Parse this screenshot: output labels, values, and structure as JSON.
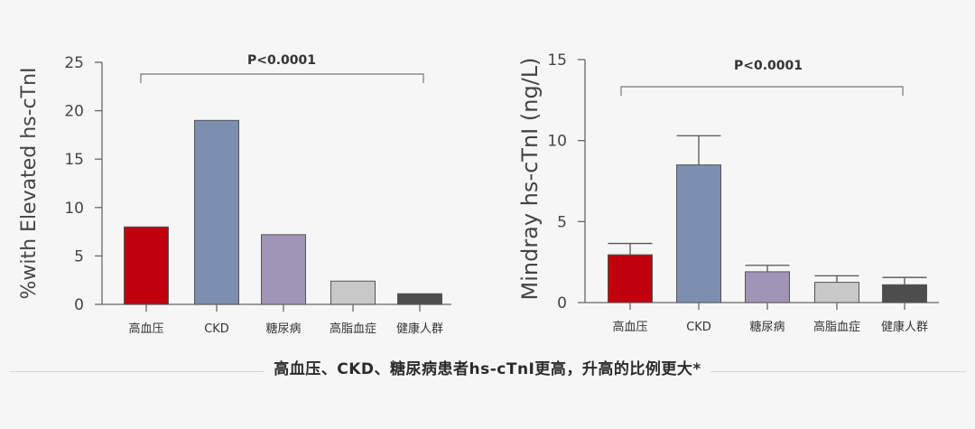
{
  "caption": "高血压、CKD、糖尿病患者hs-cTnI更高，升高的比例更大*",
  "chart_data": [
    {
      "type": "bar",
      "categories": [
        "高血压",
        "CKD",
        "糖尿病",
        "高脂血症",
        "健康人群"
      ],
      "values": [
        8,
        19,
        7.2,
        2.4,
        1.1
      ],
      "ylabel": "%with Elevated hs-cTnI",
      "ylim": [
        0,
        25
      ],
      "yticks": [
        0,
        5,
        10,
        15,
        20,
        25
      ],
      "annotation": "P<0.0001",
      "colors": [
        "#c0000d",
        "#7d8fb1",
        "#a195b7",
        "#c8c8c8",
        "#4d4d4d"
      ],
      "grid": false
    },
    {
      "type": "bar",
      "categories": [
        "高血压",
        "CKD",
        "糖尿病",
        "高脂血症",
        "健康人群"
      ],
      "values": [
        2.95,
        8.5,
        1.9,
        1.25,
        1.1
      ],
      "error": [
        0.7,
        1.8,
        0.4,
        0.4,
        0.45
      ],
      "ylabel": "Mindray hs-cTnI (ng/L)",
      "ylim": [
        0,
        15
      ],
      "yticks": [
        0,
        5,
        10,
        15
      ],
      "annotation": "P<0.0001",
      "colors": [
        "#c0000d",
        "#7d8fb1",
        "#a195b7",
        "#c8c8c8",
        "#4d4d4d"
      ],
      "grid": false
    }
  ]
}
